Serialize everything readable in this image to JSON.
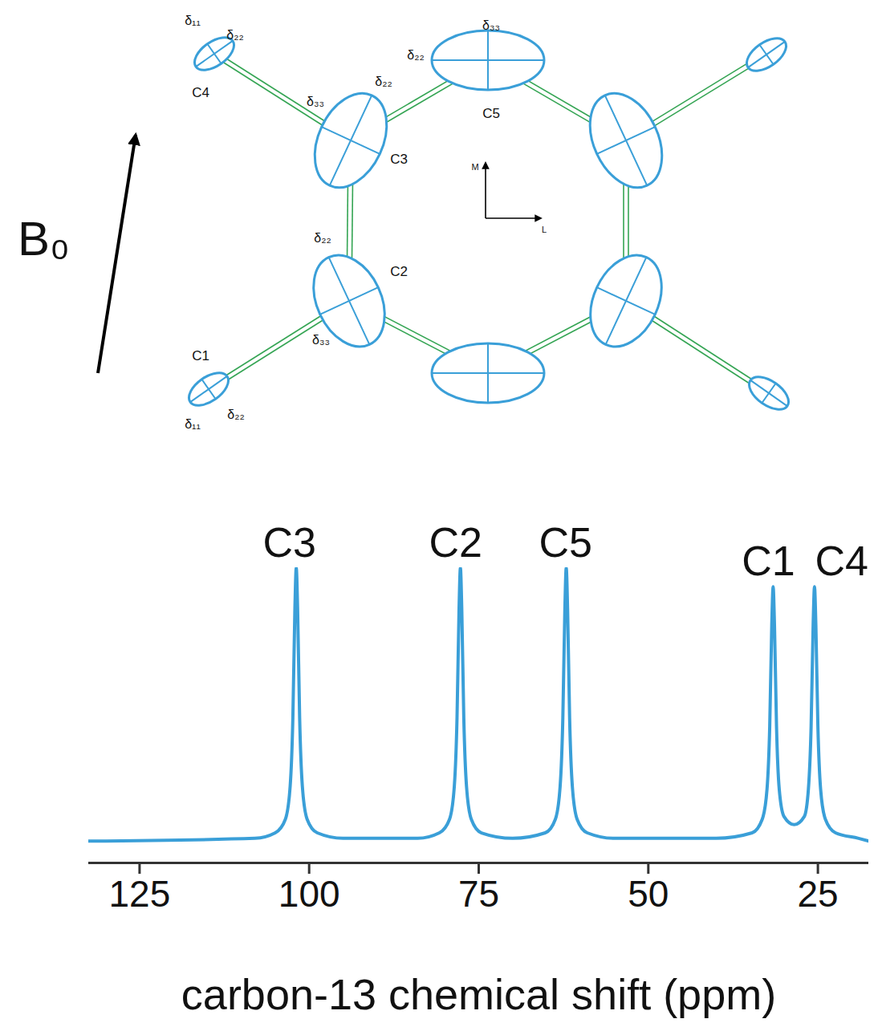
{
  "chart_data": {
    "type": "line",
    "xlabel": "carbon-13 chemical shift (ppm)",
    "x": [
      132.5,
      108,
      105,
      103.5,
      102.8,
      102.4,
      102.1,
      101.9,
      101.7,
      101.4,
      101.0,
      100.3,
      98.8,
      95,
      84,
      80.8,
      79.3,
      78.6,
      78.2,
      77.9,
      77.7,
      77.5,
      77.2,
      76.8,
      76.1,
      74.6,
      70,
      65.2,
      63.7,
      63.0,
      62.6,
      62.3,
      62.1,
      61.9,
      61.6,
      61.2,
      60.5,
      59.0,
      55,
      40,
      34.7,
      33.2,
      32.5,
      32.1,
      31.8,
      31.6,
      31.4,
      31.1,
      30.7,
      30.0,
      28.5,
      27.0,
      26.4,
      26.0,
      25.7,
      25.5,
      25.3,
      25.0,
      24.6,
      23.9,
      22.4,
      19,
      17.5
    ],
    "values": [
      0,
      0.01,
      0.03,
      0.08,
      0.2,
      0.45,
      0.85,
      1.0,
      0.85,
      0.45,
      0.2,
      0.08,
      0.03,
      0.01,
      0.01,
      0.03,
      0.08,
      0.2,
      0.45,
      0.85,
      1.0,
      0.85,
      0.45,
      0.2,
      0.08,
      0.03,
      0.01,
      0.03,
      0.08,
      0.2,
      0.45,
      0.85,
      1.0,
      0.85,
      0.45,
      0.2,
      0.08,
      0.03,
      0.01,
      0.01,
      0.03,
      0.08,
      0.19,
      0.42,
      0.79,
      0.93,
      0.79,
      0.42,
      0.19,
      0.09,
      0.06,
      0.09,
      0.19,
      0.42,
      0.79,
      0.93,
      0.79,
      0.42,
      0.19,
      0.08,
      0.03,
      0.01,
      0
    ],
    "color": "#3a9fd8",
    "xlim": [
      132.5,
      17.5
    ],
    "xticks": [
      125,
      100,
      75,
      50,
      25
    ],
    "ylim": [
      -0.08,
      1.0
    ],
    "tick_labels": "x",
    "grid": false,
    "annotations": [
      {
        "text": "C3",
        "x": 102.9,
        "y": 1.0
      },
      {
        "text": "C2",
        "x": 78.4,
        "y": 1.0
      },
      {
        "text": "C5",
        "x": 62.2,
        "y": 1.0
      },
      {
        "text": "C1",
        "x": 32.3,
        "y": 0.93
      },
      {
        "text": "C4",
        "x": 21.5,
        "y": 0.93
      }
    ]
  },
  "diagram": {
    "field_label": "B₀",
    "frame_axes": {
      "vertical": "M",
      "horizontal": "L"
    },
    "atoms": [
      {
        "label": "C1",
        "tensor_labels": [
          "δ₁₁",
          "δ₂₂"
        ]
      },
      {
        "label": "C2",
        "tensor_labels": [
          "δ₂₂",
          "δ₃₃"
        ]
      },
      {
        "label": "C3",
        "tensor_labels": [
          "δ₃₃",
          "δ₂₂"
        ]
      },
      {
        "label": "C4",
        "tensor_labels": [
          "δ₁₁",
          "δ₂₂"
        ]
      },
      {
        "label": "C5",
        "tensor_labels": [
          "δ₂₂",
          "δ₃₃"
        ]
      }
    ]
  }
}
